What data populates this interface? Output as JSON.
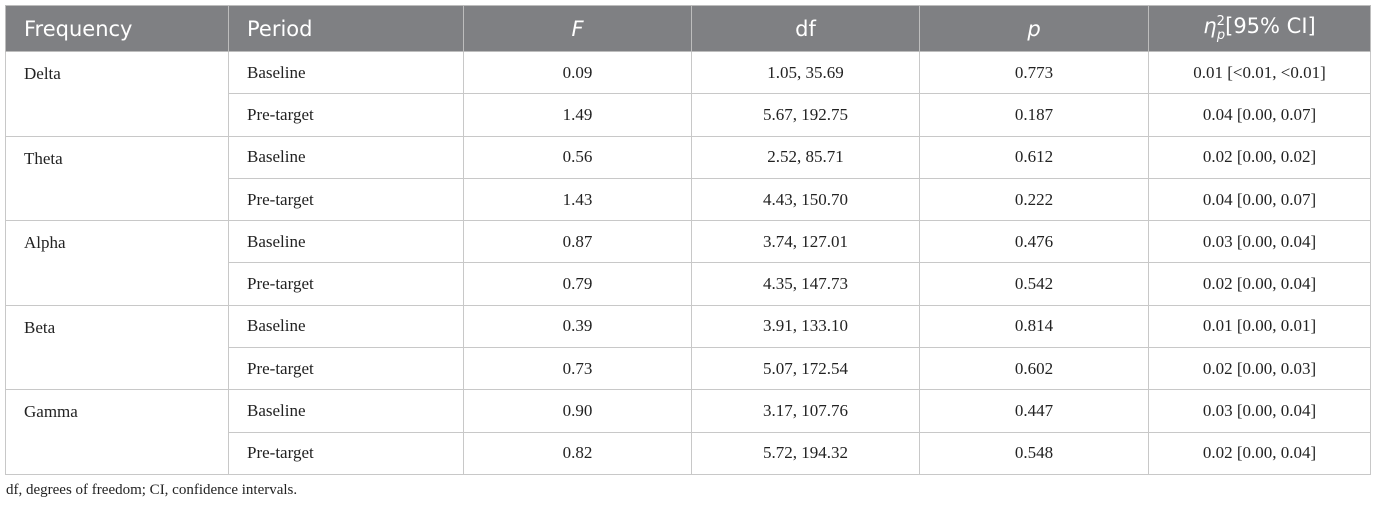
{
  "table": {
    "header": {
      "frequency": "Frequency",
      "period": "Period",
      "f": "F",
      "df": "df",
      "p": "p",
      "effect": {
        "symbol": "η",
        "sub": "p",
        "sup": "2",
        "text": "[95% CI]"
      }
    },
    "groups": [
      {
        "frequency": "Delta",
        "rows": [
          [
            "Baseline",
            "0.09",
            "1.05, 35.69",
            "0.773",
            "0.01 [<0.01, <0.01]"
          ],
          [
            "Pre-target",
            "1.49",
            "5.67, 192.75",
            "0.187",
            "0.04 [0.00, 0.07]"
          ]
        ]
      },
      {
        "frequency": "Theta",
        "rows": [
          [
            "Baseline",
            "0.56",
            "2.52, 85.71",
            "0.612",
            "0.02 [0.00, 0.02]"
          ],
          [
            "Pre-target",
            "1.43",
            "4.43, 150.70",
            "0.222",
            "0.04 [0.00, 0.07]"
          ]
        ]
      },
      {
        "frequency": "Alpha",
        "rows": [
          [
            "Baseline",
            "0.87",
            "3.74, 127.01",
            "0.476",
            "0.03 [0.00, 0.04]"
          ],
          [
            "Pre-target",
            "0.79",
            "4.35, 147.73",
            "0.542",
            "0.02 [0.00, 0.04]"
          ]
        ]
      },
      {
        "frequency": "Beta",
        "rows": [
          [
            "Baseline",
            "0.39",
            "3.91, 133.10",
            "0.814",
            "0.01 [0.00, 0.01]"
          ],
          [
            "Pre-target",
            "0.73",
            "5.07, 172.54",
            "0.602",
            "0.02 [0.00, 0.03]"
          ]
        ]
      },
      {
        "frequency": "Gamma",
        "rows": [
          [
            "Baseline",
            "0.90",
            "3.17, 107.76",
            "0.447",
            "0.03 [0.00, 0.04]"
          ],
          [
            "Pre-target",
            "0.82",
            "5.72, 194.32",
            "0.548",
            "0.02 [0.00, 0.04]"
          ]
        ]
      }
    ]
  },
  "footnote": "df, degrees of freedom; CI, confidence intervals."
}
